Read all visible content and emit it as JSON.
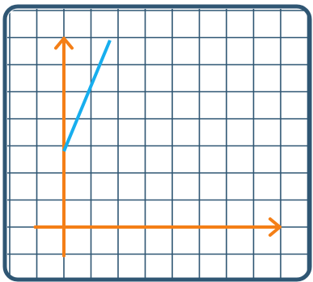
{
  "colors": {
    "frame": "#2f5673",
    "grid": "#2f5673",
    "axes": "#f47f17",
    "series_line": "#17aeee",
    "background": "#ffffff"
  },
  "chart_data": {
    "type": "line",
    "title": "",
    "xlabel": "",
    "ylabel": "",
    "xlim": [
      -1,
      8
    ],
    "ylim": [
      -1,
      7
    ],
    "grid": true,
    "axes_arrows": true,
    "series": [
      {
        "x": [
          0,
          1.7
        ],
        "y": [
          2.8,
          6.9
        ]
      }
    ]
  }
}
